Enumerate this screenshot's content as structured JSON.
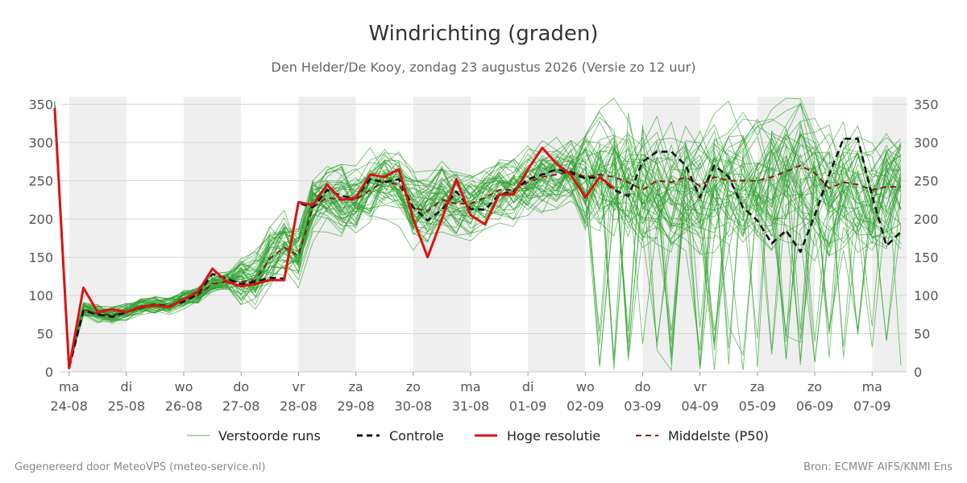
{
  "chart_data": {
    "type": "line",
    "title": "Windrichting (graden)",
    "subtitle": "Den Helder/De Kooy, zondag 23 augustus 2026 (Versie zo 12 uur)",
    "ylim": [
      0,
      360
    ],
    "yticks": [
      0,
      50,
      100,
      150,
      200,
      250,
      300,
      350
    ],
    "grid": true,
    "x_range": [
      -0.15,
      14.6
    ],
    "date_ticks": [
      {
        "day": "ma",
        "date": "24-08",
        "x": 0
      },
      {
        "day": "di",
        "date": "25-08",
        "x": 1
      },
      {
        "day": "wo",
        "date": "26-08",
        "x": 2
      },
      {
        "day": "do",
        "date": "27-08",
        "x": 3
      },
      {
        "day": "vr",
        "date": "28-08",
        "x": 4
      },
      {
        "day": "za",
        "date": "29-08",
        "x": 5
      },
      {
        "day": "zo",
        "date": "30-08",
        "x": 6
      },
      {
        "day": "ma",
        "date": "31-08",
        "x": 7
      },
      {
        "day": "di",
        "date": "01-09",
        "x": 8
      },
      {
        "day": "wo",
        "date": "02-09",
        "x": 9
      },
      {
        "day": "do",
        "date": "03-09",
        "x": 10
      },
      {
        "day": "vr",
        "date": "04-09",
        "x": 11
      },
      {
        "day": "za",
        "date": "05-09",
        "x": 12
      },
      {
        "day": "zo",
        "date": "06-09",
        "x": 13
      },
      {
        "day": "ma",
        "date": "07-09",
        "x": 14
      }
    ],
    "shaded_days": [
      [
        0,
        1
      ],
      [
        2,
        3
      ],
      [
        4,
        5
      ],
      [
        6,
        7
      ],
      [
        8,
        9
      ],
      [
        10,
        11
      ],
      [
        12,
        13
      ],
      [
        14,
        14.6
      ]
    ],
    "legend": {
      "placement": "bottom",
      "entries": [
        "Verstoorde runs",
        "Controle",
        "Hoge resolutie",
        "Middelste (P50)"
      ]
    },
    "series": [
      {
        "name": "Hoge resolutie",
        "color": "#dd1111",
        "style": "solid",
        "x": [
          -0.25,
          0,
          0.25,
          0.5,
          0.75,
          1,
          1.25,
          1.5,
          1.75,
          2,
          2.25,
          2.5,
          2.75,
          3,
          3.25,
          3.5,
          3.75,
          4,
          4.25,
          4.5,
          4.75,
          5,
          5.25,
          5.5,
          5.75,
          6,
          6.25,
          6.5,
          6.75,
          7,
          7.25,
          7.5,
          7.75,
          8,
          8.25,
          8.5,
          8.75,
          9,
          9.25,
          9.5
        ],
        "y": [
          345,
          5,
          110,
          78,
          82,
          78,
          85,
          87,
          85,
          95,
          105,
          135,
          118,
          112,
          115,
          120,
          120,
          222,
          218,
          245,
          225,
          228,
          258,
          255,
          265,
          200,
          150,
          200,
          252,
          205,
          193,
          232,
          232,
          265,
          293,
          272,
          258,
          228,
          255,
          240
        ]
      },
      {
        "name": "Controle",
        "color": "#111111",
        "style": "dashed",
        "x": [
          -0.25,
          0,
          0.25,
          0.5,
          0.75,
          1,
          1.25,
          1.5,
          1.75,
          2,
          2.25,
          2.5,
          2.75,
          3,
          3.25,
          3.5,
          3.75,
          4,
          4.25,
          4.5,
          4.75,
          5,
          5.25,
          5.5,
          5.75,
          6,
          6.25,
          6.5,
          6.75,
          7,
          7.25,
          7.5,
          7.75,
          8,
          8.25,
          8.5,
          8.75,
          9,
          9.25,
          9.5,
          9.75,
          10,
          10.25,
          10.5,
          10.75,
          11,
          11.25,
          11.5,
          11.75,
          12,
          12.25,
          12.5,
          12.75,
          13,
          13.25,
          13.5,
          13.75,
          14,
          14.25,
          14.5
        ],
        "y": [
          345,
          5,
          80,
          75,
          72,
          78,
          84,
          88,
          86,
          92,
          102,
          128,
          122,
          115,
          118,
          123,
          122,
          221,
          215,
          238,
          230,
          227,
          252,
          248,
          252,
          215,
          198,
          212,
          236,
          213,
          212,
          232,
          236,
          252,
          258,
          265,
          260,
          253,
          255,
          238,
          230,
          275,
          288,
          288,
          270,
          228,
          270,
          255,
          215,
          198,
          168,
          185,
          157,
          205,
          258,
          305,
          305,
          230,
          165,
          183
        ]
      },
      {
        "name": "Middelste (P50)",
        "color": "#8b1a1a",
        "style": "dashed",
        "x": [
          -0.25,
          0,
          0.25,
          0.5,
          0.75,
          1,
          1.25,
          1.5,
          1.75,
          2,
          2.25,
          2.5,
          2.75,
          3,
          3.25,
          3.5,
          3.75,
          4,
          4.25,
          4.5,
          4.75,
          5,
          5.25,
          5.5,
          5.75,
          6,
          6.25,
          6.5,
          6.75,
          7,
          7.25,
          7.5,
          7.75,
          8,
          8.25,
          8.5,
          8.75,
          9,
          9.25,
          9.5,
          9.75,
          10,
          10.25,
          10.5,
          10.75,
          11,
          11.25,
          11.5,
          11.75,
          12,
          12.25,
          12.5,
          12.75,
          13,
          13.25,
          13.5,
          13.75,
          14,
          14.25,
          14.5
        ],
        "y": [
          345,
          8,
          82,
          76,
          74,
          78,
          86,
          87,
          86,
          96,
          100,
          115,
          118,
          118,
          120,
          148,
          163,
          152,
          215,
          228,
          225,
          225,
          238,
          249,
          245,
          215,
          210,
          225,
          220,
          220,
          228,
          238,
          238,
          248,
          255,
          258,
          262,
          255,
          258,
          255,
          248,
          238,
          250,
          248,
          255,
          243,
          255,
          250,
          250,
          250,
          255,
          262,
          270,
          260,
          240,
          248,
          245,
          238,
          242,
          242
        ]
      }
    ],
    "ensemble_members": 50
  },
  "footer": {
    "left": "Gegenereerd door MeteoVPS (meteo-service.nl)",
    "right": "Bron: ECMWF AIFS/KNMI Ens"
  }
}
